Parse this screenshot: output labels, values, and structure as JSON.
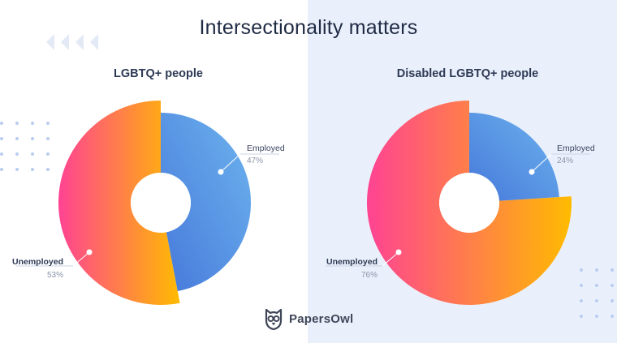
{
  "title": "Intersectionality matters",
  "brand": {
    "name": "PapersOwl",
    "icon": "owl-logo-icon"
  },
  "colors": {
    "employed_start": "#4a80dc",
    "employed_end": "#6ab0ee",
    "unemployed_start": "#ff4f91",
    "unemployed_end": "#ffb800",
    "title": "#1f2a44",
    "panel_bg": "#eaf0fb"
  },
  "chart_data": [
    {
      "type": "pie",
      "title": "LGBTQ+ people",
      "categories": [
        "Employed",
        "Unemployed"
      ],
      "values": [
        47,
        53
      ],
      "value_labels": [
        "47%",
        "53%"
      ]
    },
    {
      "type": "pie",
      "title": "Disabled LGBTQ+ people",
      "categories": [
        "Employed",
        "Unemployed"
      ],
      "values": [
        24,
        76
      ],
      "value_labels": [
        "24%",
        "76%"
      ]
    }
  ]
}
